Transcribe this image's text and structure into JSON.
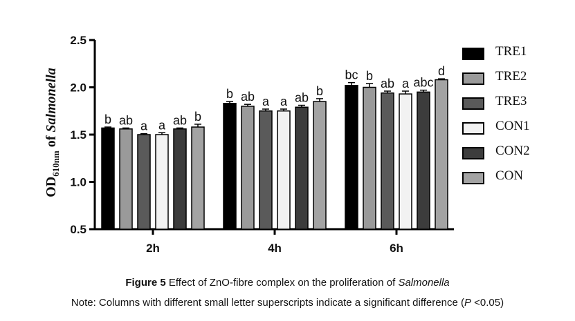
{
  "chart_data": {
    "type": "bar",
    "categories": [
      "2h",
      "4h",
      "6h"
    ],
    "ylabel_main": "OD",
    "ylabel_sub": "610nm",
    "ylabel_of": " of ",
    "ylabel_italic": "Salmonella",
    "ylim": [
      0.5,
      2.5
    ],
    "yticks": [
      "0.5",
      "1.0",
      "1.5",
      "2.0",
      "2.5"
    ],
    "ytick_values": [
      0.5,
      1.0,
      1.5,
      2.0,
      2.5
    ],
    "series": [
      {
        "name": "TRE1",
        "fill": "#000000",
        "values": [
          1.57,
          1.83,
          2.02
        ],
        "errors": [
          0.01,
          0.02,
          0.03
        ],
        "labels": [
          "b",
          "b",
          "bc"
        ]
      },
      {
        "name": "TRE2",
        "fill": "#9a9a9a",
        "values": [
          1.56,
          1.8,
          2.0
        ],
        "errors": [
          0.01,
          0.02,
          0.04
        ],
        "labels": [
          "ab",
          "ab",
          "b"
        ]
      },
      {
        "name": "TRE3",
        "fill": "#5a5a5a",
        "values": [
          1.5,
          1.75,
          1.94
        ],
        "errors": [
          0.01,
          0.02,
          0.02
        ],
        "labels": [
          "a",
          "a",
          "ab"
        ]
      },
      {
        "name": "CON1",
        "fill": "#f2f2f2",
        "values": [
          1.5,
          1.75,
          1.93
        ],
        "errors": [
          0.02,
          0.02,
          0.03
        ],
        "labels": [
          "a",
          "a",
          "a"
        ]
      },
      {
        "name": "CON2",
        "fill": "#3c3c3c",
        "values": [
          1.56,
          1.79,
          1.95
        ],
        "errors": [
          0.01,
          0.02,
          0.02
        ],
        "labels": [
          "ab",
          "ab",
          "abc"
        ]
      },
      {
        "name": "CON",
        "fill": "#a3a3a3",
        "values": [
          1.58,
          1.85,
          2.08
        ],
        "errors": [
          0.03,
          0.03,
          0.01
        ],
        "labels": [
          "b",
          "b",
          "d"
        ]
      }
    ],
    "legend_position": "right",
    "grid": false
  },
  "caption": {
    "figure_label": "Figure 5",
    "text_before": " Effect of ZnO-fibre complex on the proliferation of ",
    "italic_term": "Salmonella",
    "note_before": "Note: Columns with different small letter superscripts indicate a significant difference (",
    "note_p": "P",
    "note_after": " <0.05)"
  }
}
